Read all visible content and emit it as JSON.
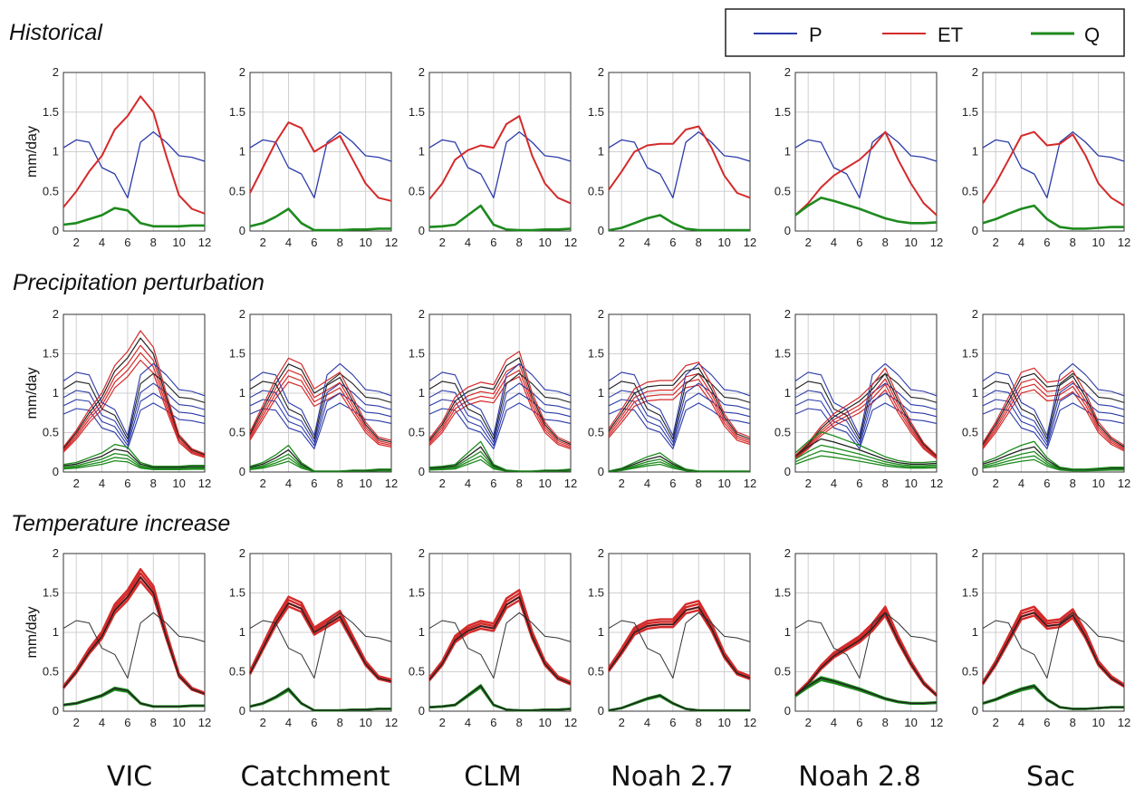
{
  "legend": {
    "entries": [
      {
        "label": "P",
        "color": "#2b3aa8"
      },
      {
        "label": "ET",
        "color": "#d42a2a"
      },
      {
        "label": "Q",
        "color": "#1d8a1d"
      }
    ]
  },
  "row_titles": [
    "Historical",
    "Precipitation perturbation",
    "Temperature increase"
  ],
  "model_names": [
    "VIC",
    "Catchment",
    "CLM",
    "Noah 2.7",
    "Noah 2.8",
    "Sac"
  ],
  "chart_data": {
    "type": "line",
    "ylabel": "mm/day",
    "ylim": [
      0,
      2
    ],
    "xlim": [
      1,
      12
    ],
    "yticks": [
      "0",
      "0.5",
      "1",
      "1.5",
      "2"
    ],
    "xticks": [
      "2",
      "4",
      "6",
      "8",
      "10",
      "12"
    ],
    "grid": true,
    "legend_position": "top-right",
    "x": [
      1,
      2,
      3,
      4,
      5,
      6,
      7,
      8,
      9,
      10,
      11,
      12
    ],
    "precip_series": [
      1.05,
      1.15,
      1.12,
      0.8,
      0.72,
      0.42,
      1.12,
      1.25,
      1.12,
      0.95,
      0.93,
      0.88
    ],
    "models": [
      {
        "name": "VIC",
        "ET": [
          0.3,
          0.5,
          0.75,
          0.95,
          1.28,
          1.45,
          1.7,
          1.5,
          0.95,
          0.45,
          0.28,
          0.22
        ],
        "Q": [
          0.08,
          0.1,
          0.15,
          0.2,
          0.29,
          0.26,
          0.1,
          0.06,
          0.06,
          0.06,
          0.07,
          0.07
        ]
      },
      {
        "name": "Catchment",
        "ET": [
          0.48,
          0.8,
          1.12,
          1.37,
          1.3,
          1.0,
          1.1,
          1.2,
          0.9,
          0.6,
          0.42,
          0.38
        ],
        "Q": [
          0.06,
          0.1,
          0.18,
          0.28,
          0.1,
          0.01,
          0.01,
          0.01,
          0.02,
          0.02,
          0.03,
          0.03
        ]
      },
      {
        "name": "CLM",
        "ET": [
          0.4,
          0.6,
          0.9,
          1.02,
          1.08,
          1.05,
          1.35,
          1.45,
          0.95,
          0.6,
          0.42,
          0.35
        ],
        "Q": [
          0.05,
          0.06,
          0.08,
          0.2,
          0.32,
          0.08,
          0.02,
          0.01,
          0.01,
          0.02,
          0.02,
          0.03
        ]
      },
      {
        "name": "Noah 2.7",
        "ET": [
          0.52,
          0.75,
          1.0,
          1.08,
          1.1,
          1.1,
          1.28,
          1.32,
          1.05,
          0.7,
          0.48,
          0.42
        ],
        "Q": [
          0.01,
          0.04,
          0.1,
          0.16,
          0.2,
          0.1,
          0.03,
          0.01,
          0.01,
          0.01,
          0.01,
          0.01
        ]
      },
      {
        "name": "Noah 2.8",
        "ET": [
          0.2,
          0.35,
          0.55,
          0.7,
          0.8,
          0.9,
          1.05,
          1.25,
          0.9,
          0.6,
          0.35,
          0.2
        ],
        "Q": [
          0.2,
          0.32,
          0.42,
          0.38,
          0.33,
          0.28,
          0.22,
          0.16,
          0.12,
          0.1,
          0.1,
          0.11
        ]
      },
      {
        "name": "Sac",
        "ET": [
          0.35,
          0.6,
          0.9,
          1.2,
          1.25,
          1.08,
          1.1,
          1.22,
          0.95,
          0.6,
          0.42,
          0.32
        ],
        "Q": [
          0.1,
          0.15,
          0.22,
          0.28,
          0.32,
          0.15,
          0.05,
          0.03,
          0.03,
          0.04,
          0.05,
          0.05
        ]
      }
    ]
  }
}
